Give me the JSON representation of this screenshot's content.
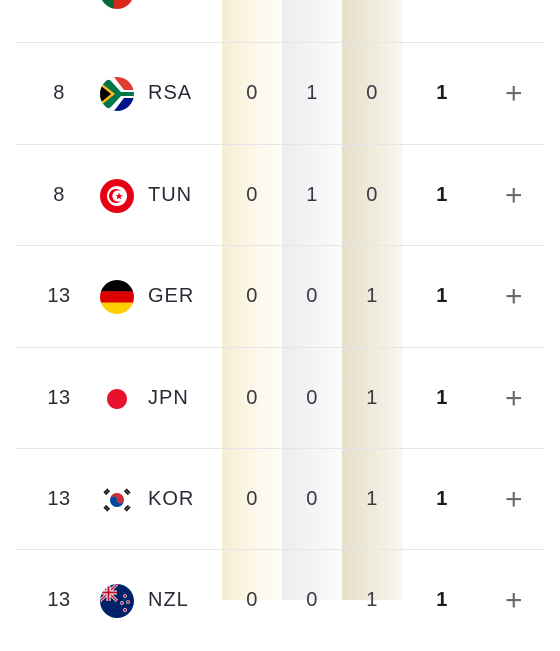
{
  "table": {
    "rows": [
      {
        "rank": "8",
        "code": "RSA",
        "gold": "0",
        "silver": "1",
        "bronze": "0",
        "total": "1",
        "flag": "south-africa-flag"
      },
      {
        "rank": "8",
        "code": "TUN",
        "gold": "0",
        "silver": "1",
        "bronze": "0",
        "total": "1",
        "flag": "tunisia-flag"
      },
      {
        "rank": "13",
        "code": "GER",
        "gold": "0",
        "silver": "0",
        "bronze": "1",
        "total": "1",
        "flag": "germany-flag"
      },
      {
        "rank": "13",
        "code": "JPN",
        "gold": "0",
        "silver": "0",
        "bronze": "1",
        "total": "1",
        "flag": "japan-flag"
      },
      {
        "rank": "13",
        "code": "KOR",
        "gold": "0",
        "silver": "0",
        "bronze": "1",
        "total": "1",
        "flag": "korea-flag"
      },
      {
        "rank": "13",
        "code": "NZL",
        "gold": "0",
        "silver": "0",
        "bronze": "1",
        "total": "1",
        "flag": "new-zealand-flag"
      }
    ],
    "expand_symbol": "+"
  },
  "colors": {
    "gold_column": "#fcf6e6",
    "silver_column": "#f4f4f6",
    "bronze_column": "#efeadb",
    "divider": "#e6e6ea"
  }
}
